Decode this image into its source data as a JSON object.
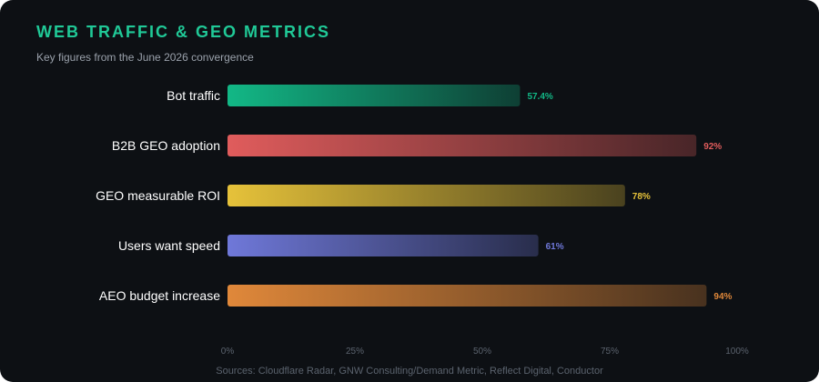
{
  "header": {
    "title": "WEB TRAFFIC & GEO METRICS",
    "subtitle": "Key figures from the June 2026 convergence"
  },
  "footer": {
    "sources": "Sources: Cloudflare Radar, GNW Consulting/Demand Metric, Reflect Digital, Conductor"
  },
  "colors": {
    "background": "#0d1014",
    "title": "#20c997",
    "series": [
      "#12b886",
      "#e05c5c",
      "#e6c23a",
      "#6f78d9",
      "#e0883a"
    ]
  },
  "chart_data": {
    "type": "bar",
    "orientation": "horizontal",
    "title": "WEB TRAFFIC & GEO METRICS",
    "subtitle": "Key figures from the June 2026 convergence",
    "categories": [
      "Bot traffic",
      "B2B GEO adoption",
      "GEO measurable ROI",
      "Users want speed",
      "AEO budget increase"
    ],
    "values": [
      57.4,
      92,
      78,
      61,
      94
    ],
    "value_labels": [
      "57.4%",
      "92%",
      "78%",
      "61%",
      "94%"
    ],
    "xlim": [
      0,
      100
    ],
    "xticks": [
      "0%",
      "25%",
      "50%",
      "75%",
      "100%"
    ],
    "xtick_values": [
      0,
      25,
      50,
      75,
      100
    ],
    "grid": false,
    "legend": "none"
  }
}
